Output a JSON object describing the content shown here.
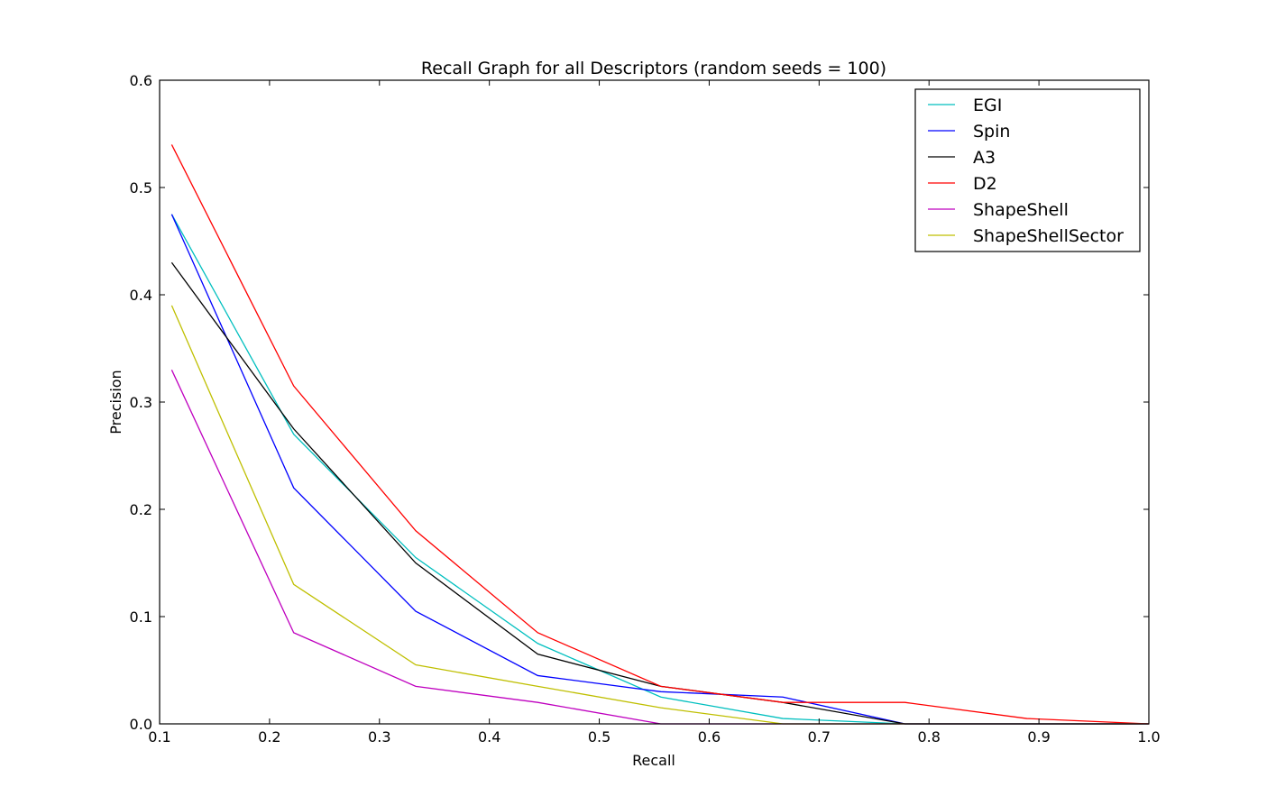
{
  "chart_data": {
    "type": "line",
    "title": "Recall Graph for all Descriptors (random seeds = 100)",
    "xlabel": "Recall",
    "ylabel": "Precision",
    "xlim": [
      0.1,
      1.0
    ],
    "ylim": [
      0.0,
      0.6
    ],
    "xticks": [
      "0.1",
      "0.2",
      "0.3",
      "0.4",
      "0.5",
      "0.6",
      "0.7",
      "0.8",
      "0.9",
      "1.0"
    ],
    "yticks": [
      "0.0",
      "0.1",
      "0.2",
      "0.3",
      "0.4",
      "0.5",
      "0.6"
    ],
    "grid": false,
    "legend_position": "top-right",
    "x": [
      0.111,
      0.222,
      0.333,
      0.444,
      0.556,
      0.667,
      0.778,
      0.889,
      1.0
    ],
    "series": [
      {
        "name": "EGI",
        "color": "#00bfbf",
        "values": [
          0.475,
          0.27,
          0.155,
          0.075,
          0.025,
          0.005,
          0.0,
          0.0,
          0.0
        ]
      },
      {
        "name": "Spin",
        "color": "#0000ff",
        "values": [
          0.475,
          0.22,
          0.105,
          0.045,
          0.03,
          0.025,
          0.0,
          0.0,
          0.0
        ]
      },
      {
        "name": "A3",
        "color": "#000000",
        "values": [
          0.43,
          0.275,
          0.15,
          0.065,
          0.035,
          0.02,
          0.0,
          0.0,
          0.0
        ]
      },
      {
        "name": "D2",
        "color": "#ff0000",
        "values": [
          0.54,
          0.315,
          0.18,
          0.085,
          0.035,
          0.02,
          0.02,
          0.005,
          0.0
        ]
      },
      {
        "name": "ShapeShell",
        "color": "#bf00bf",
        "values": [
          0.33,
          0.085,
          0.035,
          0.02,
          0.0,
          0.0,
          0.0,
          0.0,
          0.0
        ]
      },
      {
        "name": "ShapeShellSector",
        "color": "#bfbf00",
        "values": [
          0.39,
          0.13,
          0.055,
          0.035,
          0.015,
          0.0,
          0.0,
          0.0,
          0.0
        ]
      }
    ]
  }
}
